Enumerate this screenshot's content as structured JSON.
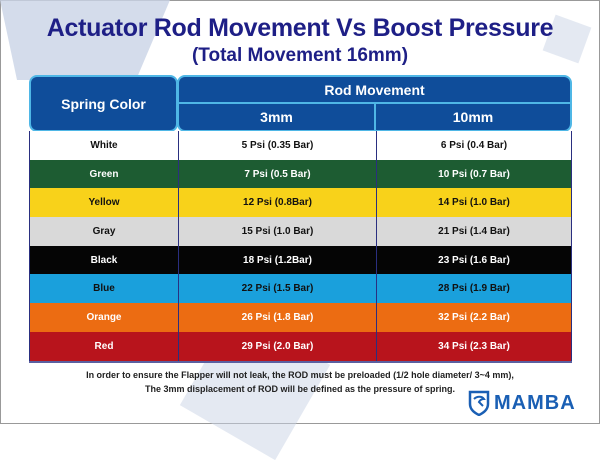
{
  "title": "Actuator Rod Movement Vs Boost Pressure",
  "subtitle": "(Total Movement 16mm)",
  "headers": {
    "spring_color": "Spring Color",
    "rod_movement": "Rod Movement",
    "col1": "3mm",
    "col2": "10mm"
  },
  "rows": [
    {
      "color": "White",
      "a": "5 Psi (0.35 Bar)",
      "b": "6 Psi (0.4 Bar)",
      "bg": "#ffffff",
      "fg": "#111111"
    },
    {
      "color": "Green",
      "a": "7 Psi (0.5 Bar)",
      "b": "10 Psi (0.7 Bar)",
      "bg": "#1d5c32",
      "fg": "#ffffff"
    },
    {
      "color": "Yellow",
      "a": "12 Psi (0.8Bar)",
      "b": "14 Psi (1.0 Bar)",
      "bg": "#f8d21a",
      "fg": "#111111"
    },
    {
      "color": "Gray",
      "a": "15 Psi (1.0 Bar)",
      "b": "21 Psi (1.4 Bar)",
      "bg": "#d9d9d9",
      "fg": "#111111"
    },
    {
      "color": "Black",
      "a": "18 Psi (1.2Bar)",
      "b": "23 Psi (1.6 Bar)",
      "bg": "#050505",
      "fg": "#ffffff"
    },
    {
      "color": "Blue",
      "a": "22 Psi (1.5 Bar)",
      "b": "28 Psi (1.9 Bar)",
      "bg": "#1aa0dc",
      "fg": "#111111"
    },
    {
      "color": "Orange",
      "a": "26 Psi (1.8 Bar)",
      "b": "32 Psi (2.2 Bar)",
      "bg": "#ec6c12",
      "fg": "#ffffff"
    },
    {
      "color": "Red",
      "a": "29 Psi (2.0 Bar)",
      "b": "34 Psi (2.3 Bar)",
      "bg": "#b8141c",
      "fg": "#ffffff"
    }
  ],
  "notes": [
    "In order to ensure the Flapper will not leak, the ROD must be preloaded (1/2 hole diameter/ 3~4 mm),",
    "The 3mm displacement of ROD will be defined as the pressure of spring."
  ],
  "logo": "MAMBA"
}
